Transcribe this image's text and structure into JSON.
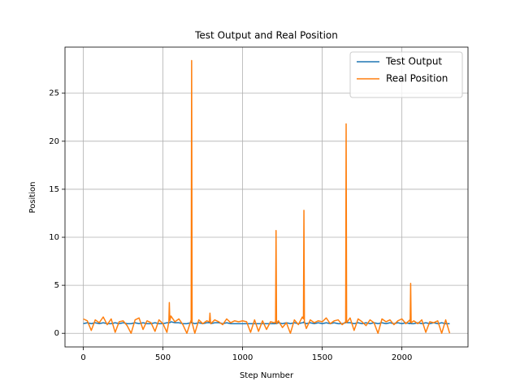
{
  "chart_data": {
    "type": "line",
    "title": "Test Output and Real Position",
    "xlabel": "Step Number",
    "ylabel": "Position",
    "x": [
      0,
      25,
      50,
      75,
      100,
      125,
      150,
      175,
      200,
      225,
      250,
      275,
      300,
      325,
      350,
      375,
      400,
      425,
      450,
      475,
      500,
      525,
      537,
      540,
      543,
      550,
      575,
      600,
      625,
      650,
      675,
      677,
      680,
      683,
      700,
      725,
      750,
      775,
      792,
      795,
      798,
      800,
      825,
      850,
      875,
      900,
      925,
      950,
      975,
      1000,
      1025,
      1050,
      1075,
      1100,
      1125,
      1150,
      1175,
      1200,
      1207,
      1210,
      1213,
      1225,
      1250,
      1275,
      1300,
      1325,
      1350,
      1375,
      1382,
      1385,
      1388,
      1400,
      1425,
      1450,
      1475,
      1500,
      1525,
      1550,
      1575,
      1600,
      1625,
      1647,
      1650,
      1653,
      1675,
      1700,
      1725,
      1750,
      1775,
      1800,
      1825,
      1850,
      1875,
      1900,
      1925,
      1950,
      1975,
      2000,
      2025,
      2050,
      2052,
      2055,
      2058,
      2075,
      2100,
      2125,
      2150,
      2175,
      2200,
      2225,
      2250,
      2275,
      2300
    ],
    "series": [
      {
        "name": "Test Output",
        "color": "#1f77b4",
        "values": [
          1.0,
          1.1,
          1.0,
          1.1,
          1.0,
          1.1,
          1.0,
          1.0,
          1.1,
          1.0,
          1.1,
          1.0,
          1.0,
          1.1,
          1.0,
          1.1,
          1.0,
          1.0,
          1.1,
          1.0,
          1.0,
          1.1,
          1.1,
          1.1,
          1.1,
          1.2,
          1.1,
          1.1,
          1.0,
          1.0,
          1.1,
          1.1,
          1.1,
          1.1,
          1.0,
          1.1,
          1.0,
          1.1,
          1.1,
          1.1,
          1.1,
          1.0,
          1.1,
          1.1,
          1.0,
          1.1,
          1.0,
          1.0,
          1.0,
          1.0,
          1.0,
          1.0,
          1.0,
          1.0,
          1.0,
          1.0,
          1.0,
          1.0,
          1.0,
          1.1,
          1.0,
          1.1,
          1.0,
          1.1,
          1.0,
          1.1,
          1.0,
          1.1,
          1.1,
          1.2,
          1.1,
          1.0,
          1.1,
          1.0,
          1.1,
          1.0,
          1.1,
          1.0,
          1.1,
          1.0,
          1.0,
          1.1,
          1.2,
          1.1,
          1.1,
          1.0,
          1.1,
          1.0,
          1.1,
          1.0,
          1.1,
          1.0,
          1.1,
          1.0,
          1.1,
          1.0,
          1.1,
          1.0,
          1.1,
          1.0,
          1.1,
          1.1,
          1.0,
          1.0,
          1.1,
          1.0,
          1.1,
          1.0,
          1.1,
          1.0,
          1.1,
          1.0,
          1.0
        ]
      },
      {
        "name": "Real Position",
        "color": "#ff7f0e",
        "values": [
          1.5,
          1.3,
          0.3,
          1.4,
          1.1,
          1.7,
          0.9,
          1.5,
          0.1,
          1.2,
          1.3,
          0.8,
          0.0,
          1.4,
          1.6,
          0.4,
          1.3,
          1.1,
          0.2,
          1.4,
          1.0,
          0.1,
          1.2,
          3.2,
          1.3,
          1.8,
          1.2,
          1.5,
          0.9,
          0.0,
          1.3,
          1.2,
          28.4,
          1.1,
          0.0,
          1.4,
          1.0,
          1.3,
          1.2,
          2.1,
          1.3,
          1.0,
          1.4,
          1.2,
          0.9,
          1.5,
          1.1,
          1.3,
          1.2,
          1.3,
          1.2,
          0.1,
          1.4,
          0.2,
          1.3,
          0.4,
          1.2,
          1.1,
          1.2,
          10.7,
          1.0,
          1.3,
          0.6,
          1.1,
          0.0,
          1.4,
          0.9,
          1.7,
          1.5,
          12.8,
          1.2,
          0.5,
          1.4,
          1.1,
          1.3,
          1.2,
          1.6,
          1.0,
          1.3,
          1.4,
          0.9,
          1.2,
          21.8,
          1.1,
          1.6,
          0.3,
          1.5,
          1.2,
          0.8,
          1.4,
          1.1,
          0.0,
          1.5,
          1.2,
          1.4,
          0.9,
          1.3,
          1.5,
          1.0,
          1.4,
          1.2,
          5.2,
          1.1,
          1.3,
          1.0,
          1.4,
          0.1,
          1.2,
          1.1,
          1.3,
          0.0,
          1.4,
          0.0
        ]
      }
    ],
    "xlim": [
      -115,
      2415
    ],
    "ylim": [
      -1.42,
      29.8
    ],
    "xticks": [
      0,
      500,
      1000,
      1500,
      2000
    ],
    "yticks": [
      0,
      5,
      10,
      15,
      20,
      25
    ],
    "grid": true,
    "legend": "upper right"
  }
}
